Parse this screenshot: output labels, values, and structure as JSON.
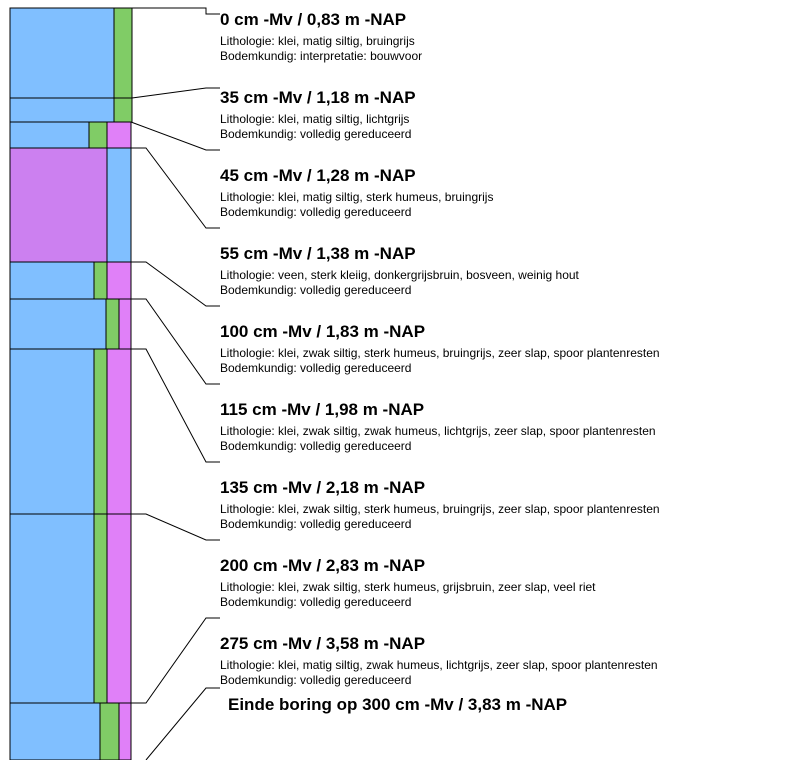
{
  "colors": {
    "lithology_clay": "#80bfff",
    "lithology_peat": "#cc80f0",
    "soil_green": "#80cc66",
    "soil_magenta": "#e080f8",
    "soil_blue": "#80bfff"
  },
  "layers": [
    {
      "top_cm": 0,
      "bottom_cm": 35,
      "lithology_color": "#80bfff",
      "bar_color": "#80cc66",
      "header": "0 cm -Mv / 0,83 m -NAP",
      "lithologie": "Lithologie: klei, matig siltig, bruingrijs",
      "bodemkundig": "Bodemkundig: interpretatie: bouwvoor"
    },
    {
      "top_cm": 35,
      "bottom_cm": 45,
      "lithology_color": "#80bfff",
      "bar_color": "#80cc66",
      "header": "35 cm -Mv / 1,18 m -NAP",
      "lithologie": "Lithologie: klei, matig siltig, lichtgrijs",
      "bodemkundig": "Bodemkundig: volledig gereduceerd"
    },
    {
      "top_cm": 45,
      "bottom_cm": 55,
      "lithology_color": "#80bfff",
      "bar_color": "#80cc66",
      "bar2_color": "#e080f8",
      "header": "45 cm -Mv / 1,28 m -NAP",
      "lithologie": "Lithologie: klei, matig siltig, sterk humeus, bruingrijs",
      "bodemkundig": "Bodemkundig: volledig gereduceerd"
    },
    {
      "top_cm": 55,
      "bottom_cm": 100,
      "lithology_color": "#cc80f0",
      "bar_color": "#80bfff",
      "header": "55 cm -Mv / 1,38 m -NAP",
      "lithologie": "Lithologie: veen, sterk kleiig, donkergrijsbruin, bosveen, weinig hout",
      "bodemkundig": "Bodemkundig: volledig gereduceerd"
    },
    {
      "top_cm": 100,
      "bottom_cm": 115,
      "lithology_color": "#80bfff",
      "bar_color": "#80cc66",
      "bar2_color": "#e080f8",
      "header": "100 cm -Mv / 1,83 m -NAP",
      "lithologie": "Lithologie: klei, zwak siltig, sterk humeus, bruingrijs, zeer slap, spoor plantenresten",
      "bodemkundig": "Bodemkundig: volledig gereduceerd"
    },
    {
      "top_cm": 115,
      "bottom_cm": 135,
      "lithology_color": "#80bfff",
      "bar_color": "#80cc66",
      "bar2_color": "#e080f8",
      "header": "115 cm -Mv / 1,98 m -NAP",
      "lithologie": "Lithologie: klei, zwak siltig, zwak humeus, lichtgrijs, zeer slap, spoor plantenresten",
      "bodemkundig": "Bodemkundig: volledig gereduceerd"
    },
    {
      "top_cm": 135,
      "bottom_cm": 200,
      "lithology_color": "#80bfff",
      "bar_color": "#80cc66",
      "bar2_color": "#e080f8",
      "header": "135 cm -Mv / 2,18 m -NAP",
      "lithologie": "Lithologie: klei, zwak siltig, sterk humeus, bruingrijs, zeer slap, spoor plantenresten",
      "bodemkundig": "Bodemkundig: volledig gereduceerd"
    },
    {
      "top_cm": 200,
      "bottom_cm": 275,
      "lithology_color": "#80bfff",
      "bar_color": "#80cc66",
      "bar2_color": "#e080f8",
      "header": "200 cm -Mv / 2,83 m -NAP",
      "lithologie": "Lithologie: klei, zwak siltig, sterk humeus, grijsbruin, zeer slap, veel riet",
      "bodemkundig": "Bodemkundig: volledig gereduceerd"
    },
    {
      "top_cm": 275,
      "bottom_cm": 300,
      "lithology_color": "#80bfff",
      "bar_color": "#80cc66",
      "bar2_color": "#e080f8",
      "header": "275 cm -Mv / 3,58 m -NAP",
      "lithologie": "Lithologie: klei, matig siltig, zwak humeus, lichtgrijs, zeer slap, spoor plantenresten",
      "bodemkundig": "Bodemkundig: volledig gereduceerd"
    }
  ],
  "end": {
    "depth_cm": 300,
    "label": "Einde boring op 300 cm -Mv / 3,83 m -NAP"
  }
}
